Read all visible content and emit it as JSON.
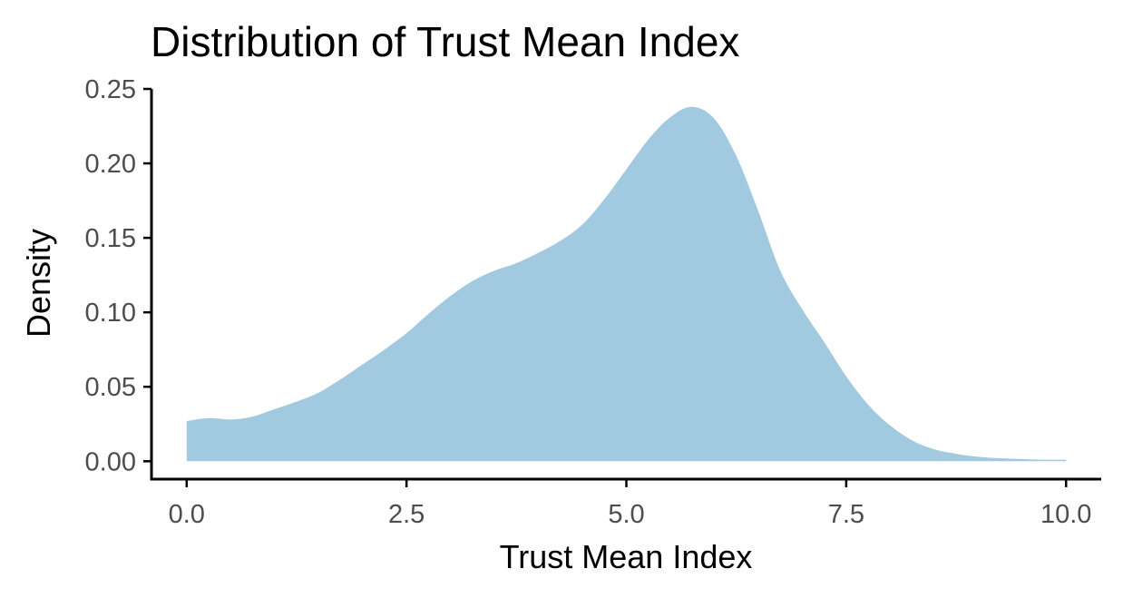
{
  "chart_data": {
    "type": "area",
    "title": "Distribution of Trust Mean Index",
    "xlabel": "Trust Mean Index",
    "ylabel": "Density",
    "xlim": [
      -0.4,
      10.4
    ],
    "ylim": [
      -0.012,
      0.25
    ],
    "x_ticks": [
      0,
      2.5,
      5,
      7.5,
      10
    ],
    "x_tick_labels": [
      "0.0",
      "2.5",
      "5.0",
      "7.5",
      "10.0"
    ],
    "y_ticks": [
      0,
      0.05,
      0.1,
      0.15,
      0.2,
      0.25
    ],
    "y_tick_labels": [
      "0.00",
      "0.05",
      "0.10",
      "0.15",
      "0.20",
      "0.25"
    ],
    "grid": false,
    "legend": "none",
    "fill_color": "#a1c9e0",
    "series": [
      {
        "x": [
          0,
          0.25,
          0.5,
          0.75,
          1.0,
          1.25,
          1.5,
          1.75,
          2.0,
          2.25,
          2.5,
          2.75,
          3.0,
          3.25,
          3.5,
          3.75,
          4.0,
          4.25,
          4.5,
          4.75,
          5.0,
          5.25,
          5.5,
          5.75,
          6.0,
          6.25,
          6.5,
          6.75,
          7.0,
          7.25,
          7.5,
          7.75,
          8.0,
          8.25,
          8.5,
          8.75,
          9.0,
          9.25,
          9.5,
          9.75,
          10.0
        ],
        "y": [
          0.027,
          0.029,
          0.028,
          0.03,
          0.035,
          0.04,
          0.046,
          0.055,
          0.065,
          0.075,
          0.086,
          0.099,
          0.111,
          0.121,
          0.128,
          0.133,
          0.14,
          0.148,
          0.159,
          0.176,
          0.196,
          0.216,
          0.231,
          0.238,
          0.23,
          0.205,
          0.168,
          0.128,
          0.102,
          0.08,
          0.057,
          0.038,
          0.024,
          0.014,
          0.008,
          0.005,
          0.003,
          0.002,
          0.0015,
          0.001,
          0.001
        ]
      }
    ]
  }
}
